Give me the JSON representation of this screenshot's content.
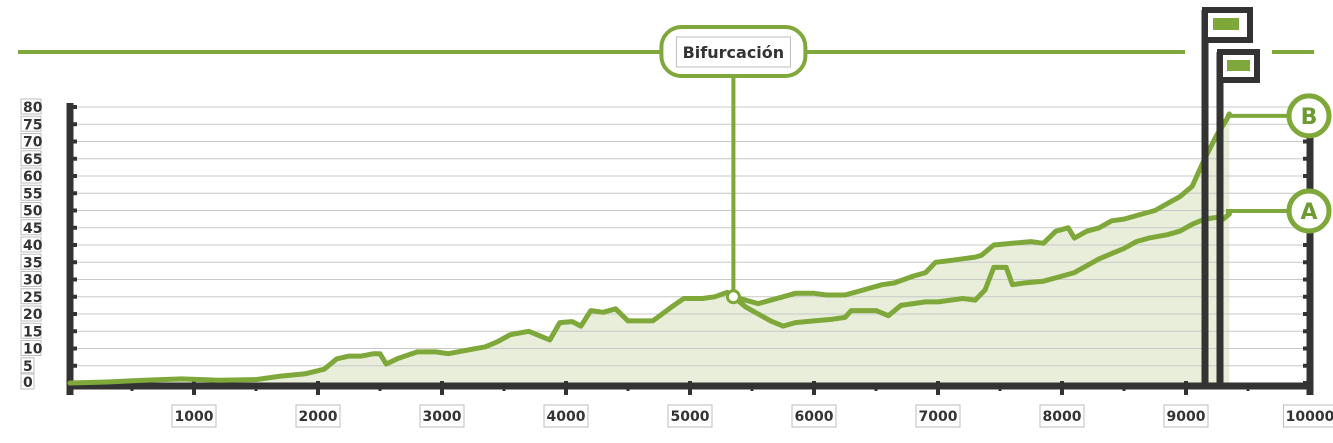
{
  "colors": {
    "accent": "#7fa83a",
    "fill": "#e8eeda",
    "axis": "#333333",
    "grid": "#c8c8c8"
  },
  "chart_data": {
    "type": "area",
    "title": "",
    "xlabel": "",
    "ylabel": "",
    "xlim": [
      0,
      10000
    ],
    "ylim": [
      0,
      80
    ],
    "x_ticks": [
      {
        "value": 1000,
        "label": "1000"
      },
      {
        "value": 2000,
        "label": "2000"
      },
      {
        "value": 3000,
        "label": "3000"
      },
      {
        "value": 4000,
        "label": "4000"
      },
      {
        "value": 5000,
        "label": "5000"
      },
      {
        "value": 6000,
        "label": "6000"
      },
      {
        "value": 7000,
        "label": "7000"
      },
      {
        "value": 8000,
        "label": "8000"
      },
      {
        "value": 9000,
        "label": "9000"
      },
      {
        "value": 10000,
        "label": "10000"
      }
    ],
    "y_ticks": [
      {
        "value": 0,
        "label": "0"
      },
      {
        "value": 5,
        "label": "5"
      },
      {
        "value": 10,
        "label": "10"
      },
      {
        "value": 15,
        "label": "15"
      },
      {
        "value": 20,
        "label": "20"
      },
      {
        "value": 25,
        "label": "25"
      },
      {
        "value": 30,
        "label": "30"
      },
      {
        "value": 35,
        "label": "35"
      },
      {
        "value": 40,
        "label": "40"
      },
      {
        "value": 45,
        "label": "45"
      },
      {
        "value": 50,
        "label": "50"
      },
      {
        "value": 55,
        "label": "55"
      },
      {
        "value": 60,
        "label": "60"
      },
      {
        "value": 65,
        "label": "65"
      },
      {
        "value": 70,
        "label": "70"
      },
      {
        "value": 75,
        "label": "75"
      },
      {
        "value": 80,
        "label": "80"
      }
    ],
    "grid": true,
    "annotation": {
      "label": "Bifurcación",
      "x": 5350,
      "y": 25
    },
    "series": [
      {
        "name": "B",
        "points": [
          [
            0,
            0
          ],
          [
            300,
            0.3
          ],
          [
            600,
            0.8
          ],
          [
            900,
            1.2
          ],
          [
            1200,
            0.8
          ],
          [
            1500,
            1
          ],
          [
            1700,
            2
          ],
          [
            1900,
            2.7
          ],
          [
            2050,
            4
          ],
          [
            2150,
            7
          ],
          [
            2250,
            7.8
          ],
          [
            2350,
            7.8
          ],
          [
            2450,
            8.5
          ],
          [
            2500,
            8.5
          ],
          [
            2550,
            5.5
          ],
          [
            2650,
            7.2
          ],
          [
            2800,
            9
          ],
          [
            2950,
            9
          ],
          [
            3050,
            8.5
          ],
          [
            3200,
            9.5
          ],
          [
            3350,
            10.5
          ],
          [
            3450,
            12
          ],
          [
            3550,
            14
          ],
          [
            3700,
            15
          ],
          [
            3800,
            13.5
          ],
          [
            3870,
            12.5
          ],
          [
            3950,
            17.5
          ],
          [
            4050,
            17.8
          ],
          [
            4120,
            16.5
          ],
          [
            4200,
            21
          ],
          [
            4300,
            20.5
          ],
          [
            4400,
            21.5
          ],
          [
            4500,
            18
          ],
          [
            4600,
            18
          ],
          [
            4700,
            18
          ],
          [
            4850,
            22
          ],
          [
            4950,
            24.5
          ],
          [
            5100,
            24.5
          ],
          [
            5200,
            25
          ],
          [
            5300,
            26.3
          ],
          [
            5350,
            25
          ],
          [
            5450,
            24
          ],
          [
            5550,
            23
          ],
          [
            5650,
            24
          ],
          [
            5750,
            25
          ],
          [
            5850,
            26
          ],
          [
            6000,
            26
          ],
          [
            6100,
            25.5
          ],
          [
            6250,
            25.5
          ],
          [
            6350,
            26.5
          ],
          [
            6450,
            27.5
          ],
          [
            6550,
            28.5
          ],
          [
            6650,
            29
          ],
          [
            6800,
            31
          ],
          [
            6900,
            32
          ],
          [
            6980,
            35
          ],
          [
            7100,
            35.5
          ],
          [
            7200,
            36
          ],
          [
            7300,
            36.5
          ],
          [
            7350,
            37
          ],
          [
            7450,
            40
          ],
          [
            7600,
            40.5
          ],
          [
            7750,
            41
          ],
          [
            7850,
            40.5
          ],
          [
            7950,
            44
          ],
          [
            8050,
            45
          ],
          [
            8100,
            42
          ],
          [
            8200,
            44
          ],
          [
            8300,
            45
          ],
          [
            8400,
            47
          ],
          [
            8500,
            47.5
          ],
          [
            8650,
            49
          ],
          [
            8750,
            50
          ],
          [
            8850,
            52
          ],
          [
            8950,
            54
          ],
          [
            9050,
            57
          ],
          [
            9150,
            65
          ],
          [
            9250,
            72
          ],
          [
            9330,
            76.5
          ],
          [
            9350,
            78
          ]
        ]
      },
      {
        "name": "A",
        "points": [
          [
            5350,
            25
          ],
          [
            5450,
            22
          ],
          [
            5550,
            20
          ],
          [
            5650,
            18
          ],
          [
            5750,
            16.5
          ],
          [
            5850,
            17.5
          ],
          [
            6000,
            18
          ],
          [
            6150,
            18.5
          ],
          [
            6250,
            19
          ],
          [
            6300,
            21
          ],
          [
            6400,
            21
          ],
          [
            6500,
            21
          ],
          [
            6600,
            19.5
          ],
          [
            6700,
            22.5
          ],
          [
            6800,
            23
          ],
          [
            6900,
            23.5
          ],
          [
            7000,
            23.5
          ],
          [
            7100,
            24
          ],
          [
            7200,
            24.5
          ],
          [
            7300,
            24
          ],
          [
            7380,
            27
          ],
          [
            7450,
            33.5
          ],
          [
            7550,
            33.5
          ],
          [
            7600,
            28.5
          ],
          [
            7700,
            29
          ],
          [
            7850,
            29.5
          ],
          [
            8000,
            31
          ],
          [
            8100,
            32
          ],
          [
            8200,
            34
          ],
          [
            8300,
            36
          ],
          [
            8400,
            37.5
          ],
          [
            8500,
            39
          ],
          [
            8600,
            41
          ],
          [
            8700,
            42
          ],
          [
            8850,
            43
          ],
          [
            8950,
            44
          ],
          [
            9050,
            46
          ],
          [
            9150,
            47.5
          ],
          [
            9250,
            48
          ],
          [
            9300,
            47.5
          ],
          [
            9350,
            49
          ]
        ]
      }
    ]
  }
}
